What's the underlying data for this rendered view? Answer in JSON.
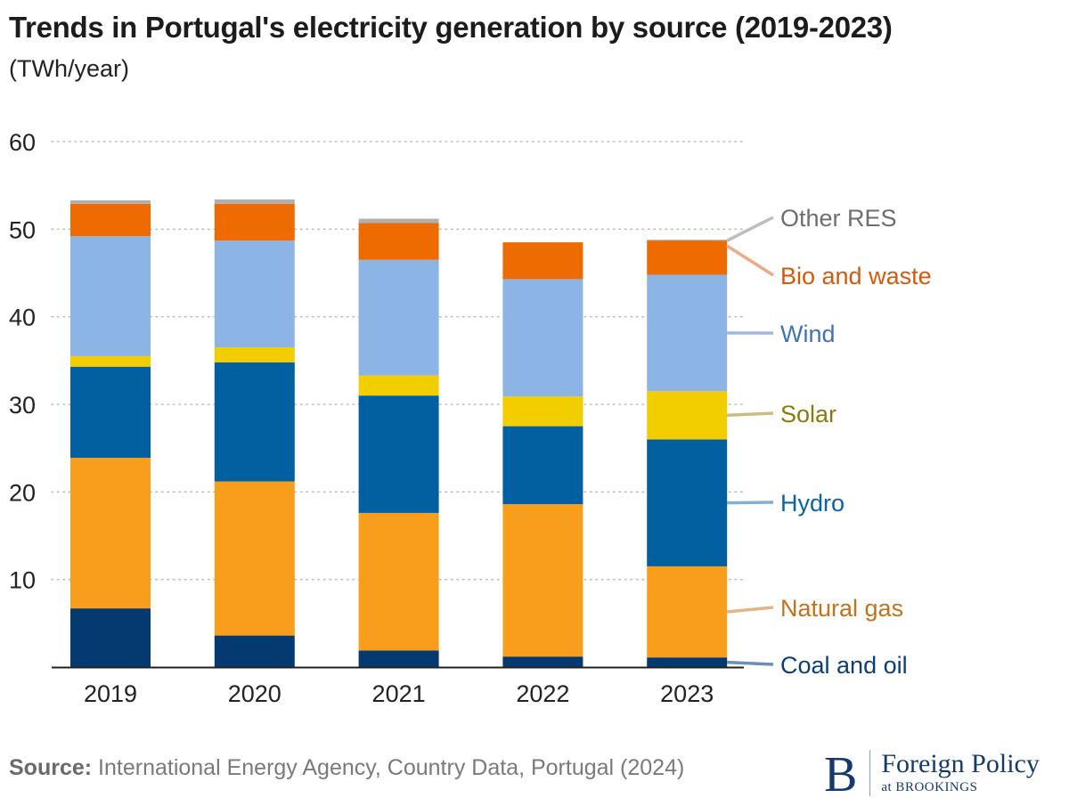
{
  "header": {
    "title": "Trends in Portugal's electricity generation by source (2019-2023)",
    "subtitle": "(TWh/year)"
  },
  "footer": {
    "source_label": "Source:",
    "source_text": " International Energy Agency, Country Data, Portugal (2024)",
    "logo_letter": "B",
    "logo_name": "Foreign Policy",
    "logo_sub": "at BROOKINGS"
  },
  "chart_data": {
    "type": "bar",
    "stacked": true,
    "title": "Trends in Portugal's electricity generation by source (2019-2023)",
    "subtitle": "(TWh/year)",
    "xlabel": "",
    "ylabel": "TWh/year",
    "ylim": [
      0,
      60
    ],
    "yticks": [
      10,
      20,
      30,
      40,
      50,
      60
    ],
    "grid": true,
    "legend_placement": "right (direct labels)",
    "categories": [
      "2019",
      "2020",
      "2021",
      "2022",
      "2023"
    ],
    "series": [
      {
        "name": "Coal and oil",
        "color": "#053a70",
        "label_color": "#0a3f78",
        "leader_color": "#6e8fb5",
        "values": [
          6.7,
          3.6,
          1.9,
          1.2,
          1.1
        ]
      },
      {
        "name": "Natural gas",
        "color": "#f99e1c",
        "label_color": "#c0731a",
        "leader_color": "#e0b888",
        "values": [
          17.2,
          17.6,
          15.7,
          17.4,
          10.4
        ]
      },
      {
        "name": "Hydro",
        "color": "#0360a0",
        "label_color": "#0b63a3",
        "leader_color": "#84aed2",
        "values": [
          10.4,
          13.6,
          13.4,
          8.9,
          14.5
        ]
      },
      {
        "name": "Solar",
        "color": "#f2cd00",
        "label_color": "#8a7a10",
        "leader_color": "#c9bd80",
        "values": [
          1.2,
          1.7,
          2.3,
          3.4,
          5.5
        ]
      },
      {
        "name": "Wind",
        "color": "#8cb5e6",
        "label_color": "#3f74b1",
        "leader_color": "#9dbad8",
        "values": [
          13.7,
          12.2,
          13.2,
          13.4,
          13.3
        ]
      },
      {
        "name": "Bio and waste",
        "color": "#ee6b02",
        "label_color": "#d45a0a",
        "leader_color": "#ecaa86",
        "values": [
          3.7,
          4.2,
          4.2,
          4.2,
          3.9
        ]
      },
      {
        "name": "Other RES",
        "color": "#b0b0b0",
        "label_color": "#6e6e6e",
        "leader_color": "#bdbdbd",
        "values": [
          0.4,
          0.5,
          0.5,
          0.0,
          0.1
        ]
      }
    ]
  }
}
